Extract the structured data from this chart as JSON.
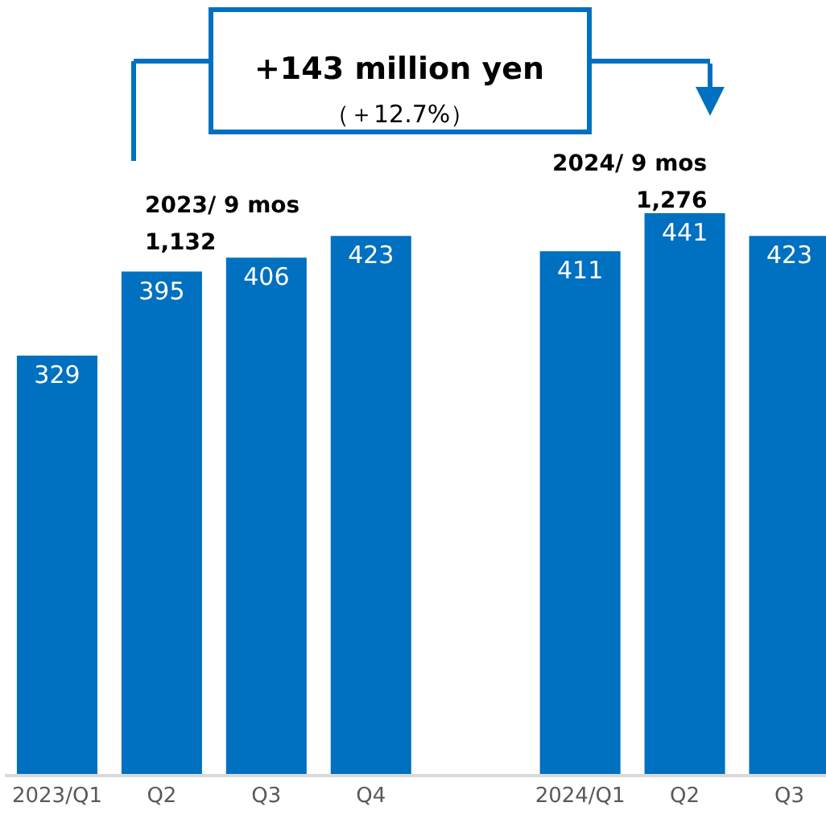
{
  "chart_data": {
    "type": "bar",
    "categories": [
      "2023/Q1",
      "Q2",
      "Q3",
      "Q4",
      null,
      "2024/Q1",
      "Q2",
      "Q3"
    ],
    "values": [
      329,
      395,
      406,
      423,
      null,
      411,
      441,
      423
    ],
    "color": "#0070c0",
    "data_labels": true,
    "legend": false,
    "grid": false,
    "annotations": [
      "+143 million yen",
      "（＋12.7%）",
      "2023/ 9 mos",
      "1,132",
      "2024/ 9 mos",
      "1,276"
    ]
  }
}
